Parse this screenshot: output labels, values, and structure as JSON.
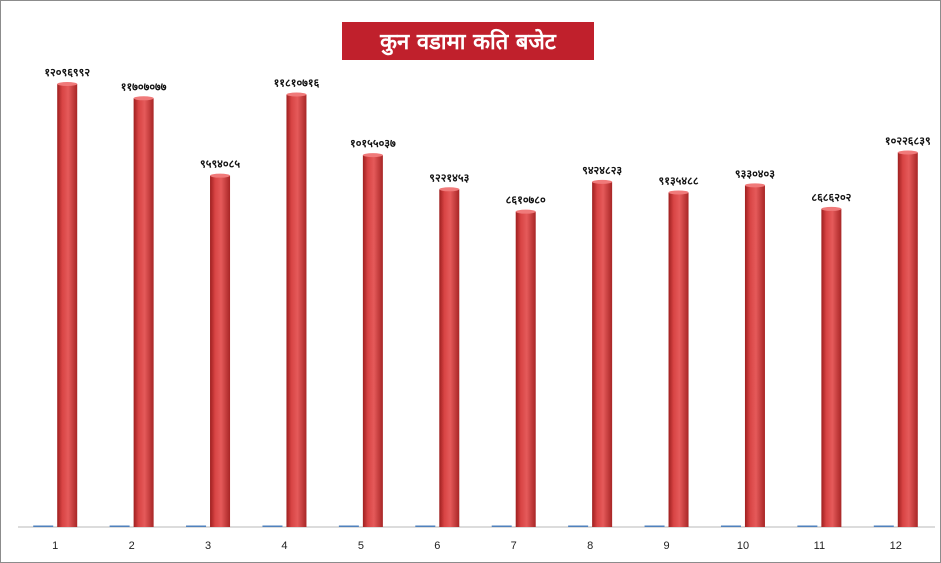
{
  "chart_data": {
    "type": "bar",
    "title": "कुन वडामा कति बजेट",
    "xlabel": "",
    "ylabel": "",
    "ylim": [
      0,
      12096992
    ],
    "grid": false,
    "legend": "none",
    "categories": [
      "1",
      "2",
      "3",
      "4",
      "5",
      "6",
      "7",
      "8",
      "9",
      "10",
      "11",
      "12"
    ],
    "series": [
      {
        "values": [
          12096992,
          11707077,
          9594085,
          11810716,
          10155037,
          9221453,
          8610780,
          9424823,
          9135488,
          9330403,
          8686202,
          10226839
        ],
        "labels": [
          "१२०९६९९२",
          "११७०७०७७",
          "९५९४०८५",
          "११८१०७१६",
          "१०१५५०३७",
          "९२२१४५३",
          "८६१०७८०",
          "९४२४८२३",
          "९१३५४८८",
          "९३३०४०३",
          "८६८६२०२",
          "१०२२६८३९"
        ],
        "color": "#d43a3a"
      }
    ],
    "baseline_series_color": "#4f81bd"
  }
}
